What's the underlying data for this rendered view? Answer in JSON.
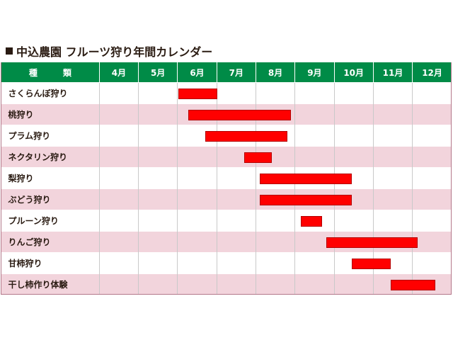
{
  "title": "中込農園 フルーツ狩り年間カレンダー",
  "header": {
    "type_label": "種　類",
    "months": [
      "4月",
      "5月",
      "6月",
      "7月",
      "8月",
      "9月",
      "10月",
      "11月",
      "12月"
    ]
  },
  "rows": [
    {
      "name": "さくらんぼ狩り",
      "start_month": 6.05,
      "end_month": 7.05
    },
    {
      "name": "桃狩り",
      "start_month": 6.3,
      "end_month": 8.95
    },
    {
      "name": "プラム狩り",
      "start_month": 6.75,
      "end_month": 8.85
    },
    {
      "name": "ネクタリン狩り",
      "start_month": 7.75,
      "end_month": 8.45
    },
    {
      "name": "梨狩り",
      "start_month": 8.15,
      "end_month": 10.5
    },
    {
      "name": "ぶどう狩り",
      "start_month": 8.15,
      "end_month": 10.5
    },
    {
      "name": "プルーン狩り",
      "start_month": 9.2,
      "end_month": 9.75
    },
    {
      "name": "りんご狩り",
      "start_month": 9.85,
      "end_month": 12.2
    },
    {
      "name": "甘柿狩り",
      "start_month": 10.5,
      "end_month": 11.5
    },
    {
      "name": "干し柿作り体験",
      "start_month": 11.5,
      "end_month": 12.65
    }
  ]
}
